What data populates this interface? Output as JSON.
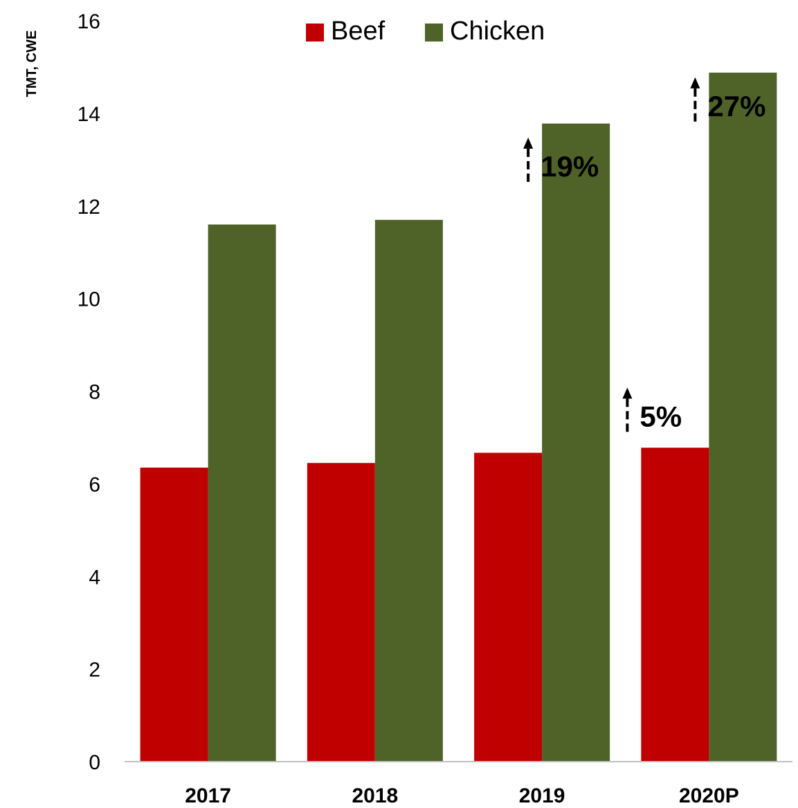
{
  "chart_data": {
    "type": "bar",
    "title": "",
    "ylabel": "TMT, CWE",
    "xlabel": "",
    "categories": [
      "2017",
      "2018",
      "2019",
      "2020P"
    ],
    "series": [
      {
        "name": "Beef",
        "color": "#c00000",
        "values": [
          6.35,
          6.45,
          6.67,
          6.78
        ]
      },
      {
        "name": "Chicken",
        "color": "#4f6228",
        "values": [
          11.6,
          11.7,
          13.78,
          14.88
        ]
      }
    ],
    "ylim": [
      0,
      16
    ],
    "yticks": [
      "0",
      "2",
      "4",
      "6",
      "8",
      "10",
      "12",
      "14",
      "16"
    ],
    "grid": false,
    "legend_position": "top-center",
    "annotations": [
      {
        "text": "19%",
        "category": "2019",
        "series": "Chicken",
        "y": 13.0
      },
      {
        "text": "27%",
        "category": "2020P",
        "series": "Chicken",
        "y": 14.3
      },
      {
        "text": "5%",
        "category": "2020P",
        "series": "Beef",
        "y": 7.6
      }
    ]
  }
}
